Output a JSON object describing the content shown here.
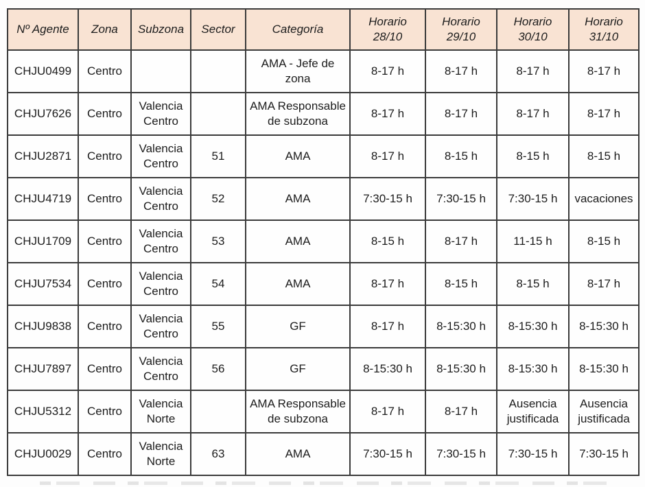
{
  "table": {
    "columns": [
      "Nº Agente",
      "Zona",
      "Subzona",
      "Sector",
      "Categoría",
      "Horario\n28/10",
      "Horario\n29/10",
      "Horario\n30/10",
      "Horario\n31/10"
    ],
    "rows": [
      [
        "CHJU0499",
        "Centro",
        "",
        "",
        "AMA - Jefe de\nzona",
        "8-17 h",
        "8-17 h",
        "8-17 h",
        "8-17 h"
      ],
      [
        "CHJU7626",
        "Centro",
        "Valencia\nCentro",
        "",
        "AMA Responsable\nde subzona",
        "8-17 h",
        "8-17 h",
        "8-17 h",
        "8-17 h"
      ],
      [
        "CHJU2871",
        "Centro",
        "Valencia\nCentro",
        "51",
        "AMA",
        "8-17 h",
        "8-15 h",
        "8-15 h",
        "8-15 h"
      ],
      [
        "CHJU4719",
        "Centro",
        "Valencia\nCentro",
        "52",
        "AMA",
        "7:30-15 h",
        "7:30-15 h",
        "7:30-15 h",
        "vacaciones"
      ],
      [
        "CHJU1709",
        "Centro",
        "Valencia\nCentro",
        "53",
        "AMA",
        "8-15 h",
        "8-17 h",
        "11-15 h",
        "8-15 h"
      ],
      [
        "CHJU7534",
        "Centro",
        "Valencia\nCentro",
        "54",
        "AMA",
        "8-17 h",
        "8-15 h",
        "8-15 h",
        "8-17 h"
      ],
      [
        "CHJU9838",
        "Centro",
        "Valencia\nCentro",
        "55",
        "GF",
        "8-17 h",
        "8-15:30 h",
        "8-15:30 h",
        "8-15:30 h"
      ],
      [
        "CHJU7897",
        "Centro",
        "Valencia\nCentro",
        "56",
        "GF",
        "8-15:30 h",
        "8-15:30 h",
        "8-15:30 h",
        "8-15:30 h"
      ],
      [
        "CHJU5312",
        "Centro",
        "Valencia\nNorte",
        "",
        "AMA Responsable\nde subzona",
        "8-17 h",
        "8-17 h",
        "Ausencia\njustificada",
        "Ausencia\njustificada"
      ],
      [
        "CHJU0029",
        "Centro",
        "Valencia\nNorte",
        "63",
        "AMA",
        "7:30-15 h",
        "7:30-15 h",
        "7:30-15 h",
        "7:30-15 h"
      ]
    ]
  },
  "colors": {
    "header_bg": "#f9e3d3",
    "border": "#3a3a3a",
    "text": "#1c1c1c"
  }
}
